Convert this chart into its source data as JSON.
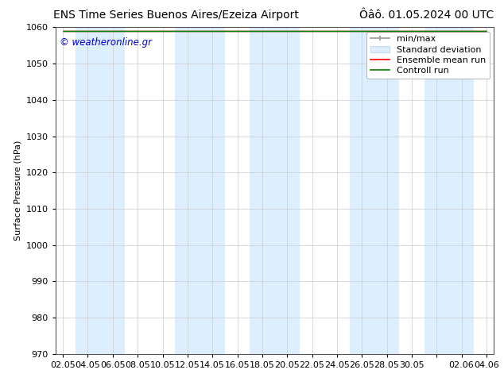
{
  "title_left": "ENS Time Series Buenos Aires/Ezeiza Airport",
  "title_right": "Ôâô. 01.05.2024 00 UTC",
  "ylabel": "Surface Pressure (hPa)",
  "watermark": "© weatheronline.gr",
  "ylim": [
    970,
    1060
  ],
  "yticks": [
    970,
    980,
    990,
    1000,
    1010,
    1020,
    1030,
    1040,
    1050,
    1060
  ],
  "xtick_labels": [
    "02.05",
    "04.05",
    "06.05",
    "08.05",
    "10.05",
    "12.05",
    "14.05",
    "16.05",
    "18.05",
    "20.05",
    "22.05",
    "24.05",
    "26.05",
    "28.05",
    "30.05",
    "",
    "02.06",
    "04.06"
  ],
  "band_color": "#ddeeff",
  "band_edge_color": "#c8dcee",
  "data_value": 1059.0,
  "bg_color": "#ffffff",
  "title_fontsize": 10,
  "axis_fontsize": 8,
  "watermark_color": "#0000cc",
  "legend_fontsize": 8
}
